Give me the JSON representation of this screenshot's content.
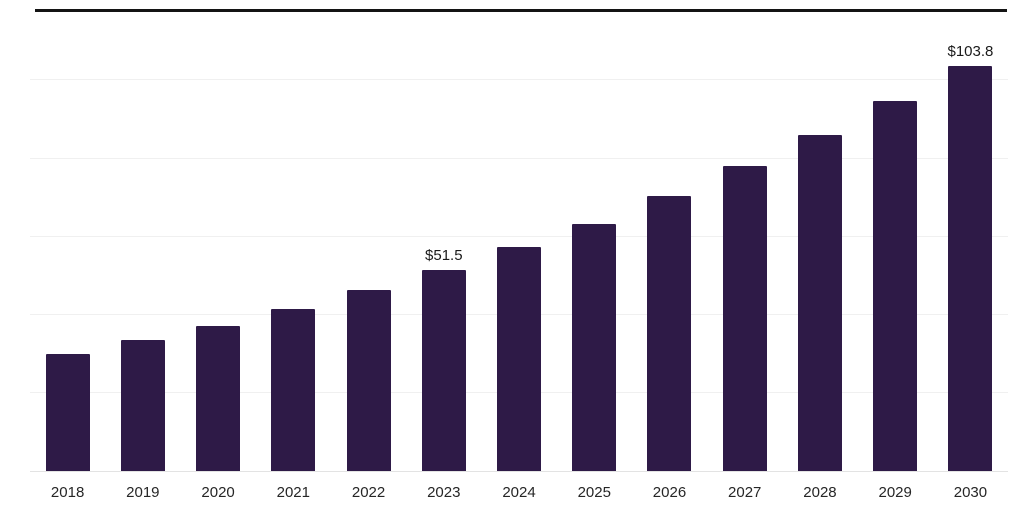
{
  "chart_data": {
    "type": "bar",
    "title": "",
    "xlabel": "",
    "ylabel": "",
    "categories": [
      "2018",
      "2019",
      "2020",
      "2021",
      "2022",
      "2023",
      "2024",
      "2025",
      "2026",
      "2027",
      "2028",
      "2029",
      "2030"
    ],
    "values": [
      30.0,
      33.5,
      37.2,
      41.6,
      46.3,
      51.5,
      57.4,
      63.2,
      70.5,
      78.2,
      86.1,
      94.6,
      103.8
    ],
    "data_labels": [
      "",
      "",
      "",
      "",
      "",
      "$51.5",
      "",
      "",
      "",
      "",
      "",
      "",
      "$103.8"
    ],
    "ylim": [
      0,
      117.5
    ],
    "gridline_values": [
      20,
      40,
      60,
      80,
      100
    ],
    "grid": "horizontal",
    "legend": "none",
    "colors": {
      "bar": "#2e1a47",
      "background": "#ffffff",
      "gridline": "#f0f0f0",
      "axis_line": "#e3e3e3",
      "top_border": "#141414",
      "label_text": "#1a1a1a",
      "tick_text": "#262626"
    }
  }
}
